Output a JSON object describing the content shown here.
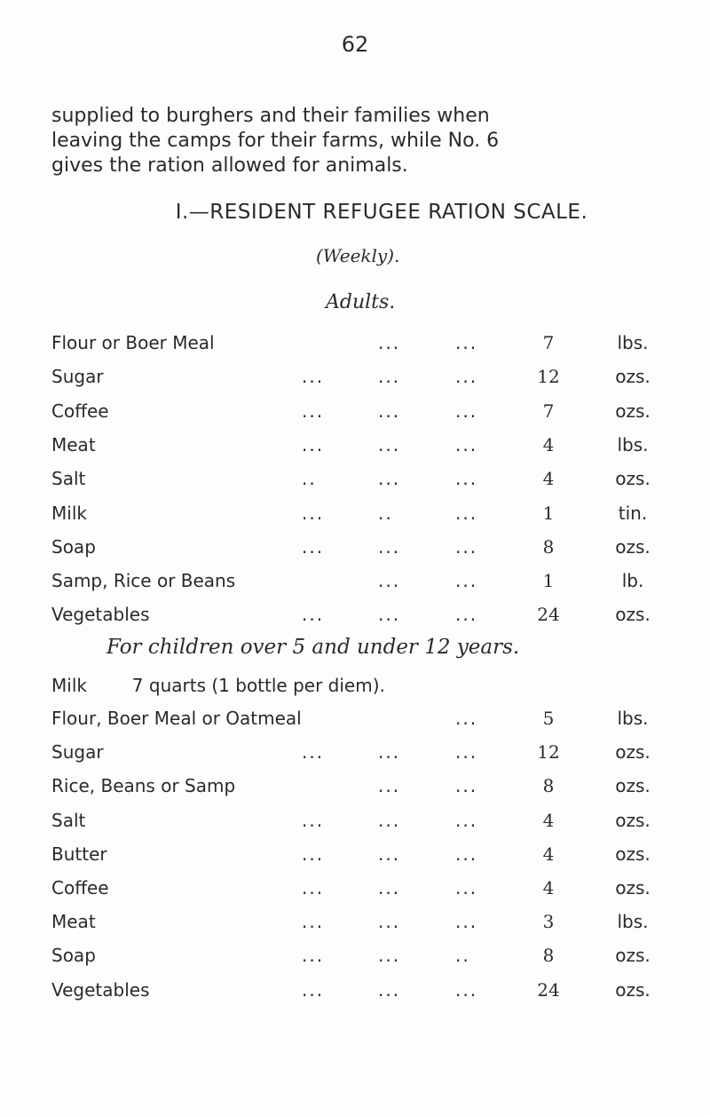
{
  "page_number": "62",
  "paragraph": [
    "supplied to burghers and their families when",
    "leaving the camps for their farms, while No. 6",
    "gives the ration allowed for animals."
  ],
  "heading": "I.—RESIDENT REFUGEE RATION SCALE.",
  "subheading": "(Weekly).",
  "adults_title": "Adults.",
  "adults": [
    {
      "item": "Flour or Boer Meal",
      "d1": "",
      "d2": "...",
      "d3": "...",
      "qty": "7",
      "unit": "lbs."
    },
    {
      "item": "Sugar",
      "d1": "...",
      "d2": "...",
      "d3": "...",
      "qty": "12",
      "unit": "ozs."
    },
    {
      "item": "Coffee",
      "d1": "...",
      "d2": "...",
      "d3": "...",
      "qty": "7",
      "unit": "ozs."
    },
    {
      "item": "Meat",
      "d1": "...",
      "d2": "...",
      "d3": "...",
      "qty": "4",
      "unit": "lbs."
    },
    {
      "item": "Salt",
      "d1": "..",
      "d2": "...",
      "d3": "...",
      "qty": "4",
      "unit": "ozs."
    },
    {
      "item": "Milk",
      "d1": "...",
      "d2": "..",
      "d3": "...",
      "qty": "1",
      "unit": "tin."
    },
    {
      "item": "Soap",
      "d1": "...",
      "d2": "...",
      "d3": "...",
      "qty": "8",
      "unit": "ozs."
    },
    {
      "item": "Samp, Rice or Beans",
      "d1": "",
      "d2": "...",
      "d3": "...",
      "qty": "1",
      "unit": "lb."
    },
    {
      "item": "Vegetables",
      "d1": "...",
      "d2": "...",
      "d3": "...",
      "qty": "24",
      "unit": "ozs."
    }
  ],
  "children_title": "For children over 5 and under 12 years.",
  "children_milk": "Milk        7 quarts (1 bottle per diem).",
  "children": [
    {
      "item": "Flour, Boer Meal or Oatmeal",
      "d1": "",
      "d2": "",
      "d3": "...",
      "qty": "5",
      "unit": "lbs."
    },
    {
      "item": "Sugar",
      "d1": "...",
      "d2": "...",
      "d3": "...",
      "qty": "12",
      "unit": "ozs."
    },
    {
      "item": "Rice, Beans or Samp",
      "d1": "",
      "d2": "...",
      "d3": "...",
      "qty": "8",
      "unit": "ozs."
    },
    {
      "item": "Salt",
      "d1": "...",
      "d2": "...",
      "d3": "...",
      "qty": "4",
      "unit": "ozs."
    },
    {
      "item": "Butter",
      "d1": "...",
      "d2": "...",
      "d3": "...",
      "qty": "4",
      "unit": "ozs."
    },
    {
      "item": "Coffee",
      "d1": "...",
      "d2": "...",
      "d3": "...",
      "qty": "4",
      "unit": "ozs."
    },
    {
      "item": "Meat",
      "d1": "...",
      "d2": "...",
      "d3": "...",
      "qty": "3",
      "unit": "lbs."
    },
    {
      "item": "Soap",
      "d1": "...",
      "d2": "...",
      "d3": "..",
      "qty": "8",
      "unit": "ozs."
    },
    {
      "item": "Vegetables",
      "d1": "...",
      "d2": "...",
      "d3": "...",
      "qty": "24",
      "unit": "ozs."
    }
  ]
}
